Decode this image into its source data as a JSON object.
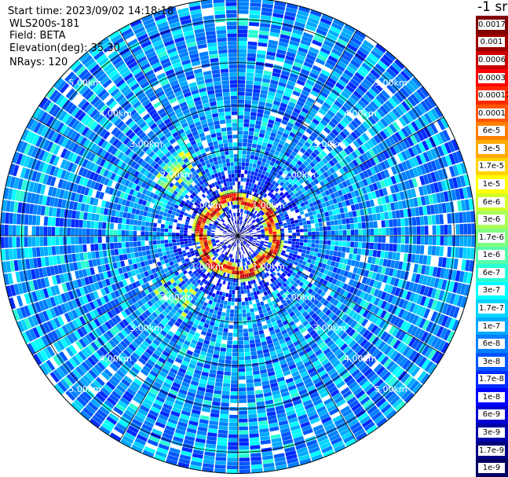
{
  "header": {
    "start_time": "Start time: 2023/09/02 14:18:18",
    "instrument": "WLS200s-181",
    "field": "Field: BETA",
    "elevation": "Elevation(deg): 35.30",
    "nrays": "NRays: 120"
  },
  "colorbar": {
    "unit_label": "-1 sr",
    "labels": [
      "0.0017",
      "0.001",
      "0.0006",
      "0.0003",
      "0.00017",
      "0.0001",
      "6e-5",
      "3e-5",
      "1.7e-5",
      "1e-5",
      "6e-6",
      "3e-6",
      "1.7e-6",
      "1e-6",
      "6e-7",
      "3e-7",
      "1.7e-7",
      "1e-7",
      "6e-8",
      "3e-8",
      "1.7e-8",
      "1e-8",
      "6e-9",
      "3e-9",
      "1.7e-9",
      "1e-9"
    ],
    "colors": [
      "#800000",
      "#9a0000",
      "#cc0000",
      "#ff0000",
      "#ff2a00",
      "#ff5500",
      "#ff7f00",
      "#ffaa00",
      "#ffd400",
      "#ffff00",
      "#d4ff2a",
      "#aaff55",
      "#80ff80",
      "#55ffaa",
      "#2affd4",
      "#00ffff",
      "#00d4ff",
      "#00aaff",
      "#0080ff",
      "#0055ff",
      "#002aff",
      "#0000ff",
      "#0000d4",
      "#0000aa",
      "#000080",
      "#000060"
    ]
  },
  "range_labels": [
    "1.00km",
    "2.00km",
    "3.00km",
    "4.00km",
    "5.00km"
  ],
  "chart_data": {
    "type": "heatmap",
    "projection": "polar-ppi",
    "field": "BETA",
    "elevation_deg": 35.3,
    "n_rays": 120,
    "range_rings_km": [
      1,
      2,
      3,
      4,
      5
    ],
    "max_range_km": 5.5,
    "spokes_deg": [
      0,
      30,
      60,
      90,
      120,
      150,
      180,
      210,
      240,
      270,
      300,
      330
    ],
    "features": [
      {
        "feature": "near-range high backscatter ring",
        "range_km": [
          0.7,
          1.05
        ],
        "beta_sr-1": [
          0.0003,
          0.0017
        ]
      },
      {
        "feature": "scattered clutter",
        "azimuth_deg": [
          300,
          60
        ],
        "range_km": [
          1.5,
          2.2
        ],
        "beta_sr-1": [
          1e-06,
          1e-05
        ]
      },
      {
        "feature": "background aerosol",
        "range_km": [
          1.2,
          5.5
        ],
        "beta_sr-1": [
          3e-09,
          1e-07
        ]
      }
    ]
  }
}
